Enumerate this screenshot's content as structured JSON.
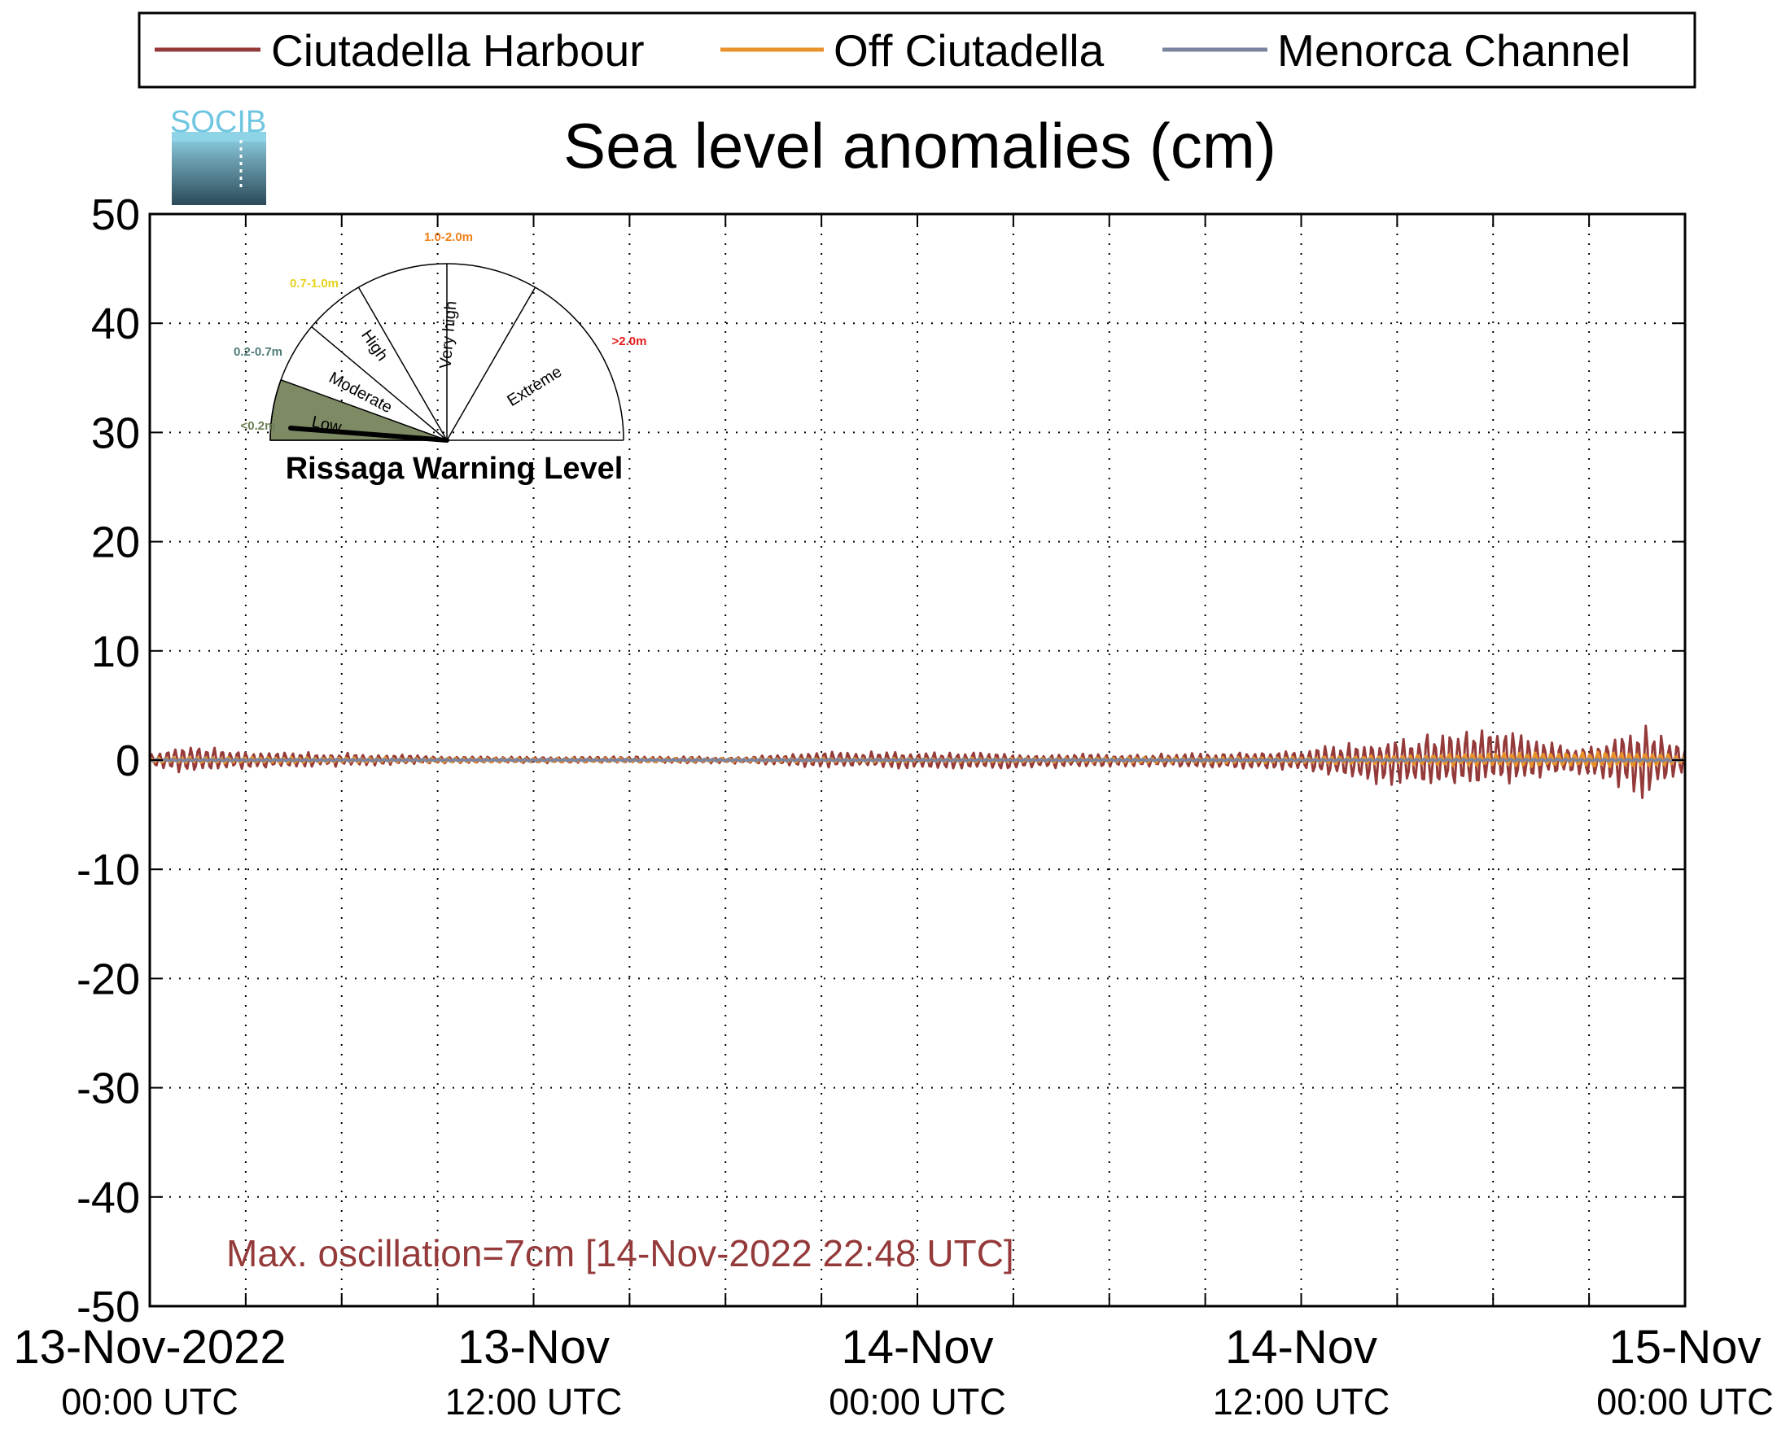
{
  "colors": {
    "harbour": "#953a3a",
    "off": "#e8922a",
    "channel": "#7a849e",
    "annotation": "#953a3a",
    "low_sector": "#7d8a64",
    "label_low": "#6b7f55",
    "label_moderate": "#4f7a78",
    "label_high": "#e6d21a",
    "label_veryhigh": "#f07f17",
    "label_extreme": "#e21a1a"
  },
  "logo": {
    "text": "SOCIB"
  },
  "chart_data": {
    "type": "line",
    "title": "Sea level anomalies (cm)",
    "xlabel": "",
    "ylabel": "",
    "ylim": [
      -50,
      50
    ],
    "yticks": [
      50,
      40,
      30,
      20,
      10,
      0,
      -10,
      -20,
      -30,
      -40,
      -50
    ],
    "xrange": [
      "2022-11-13T00:00Z",
      "2022-11-15T00:00Z"
    ],
    "xticks": [
      {
        "x": "2022-11-13T00:00Z",
        "line1": "13-Nov-2022",
        "line2": "00:00 UTC"
      },
      {
        "x": "2022-11-13T12:00Z",
        "line1": "13-Nov",
        "line2": "12:00 UTC"
      },
      {
        "x": "2022-11-14T00:00Z",
        "line1": "14-Nov",
        "line2": "00:00 UTC"
      },
      {
        "x": "2022-11-14T12:00Z",
        "line1": "14-Nov",
        "line2": "12:00 UTC"
      },
      {
        "x": "2022-11-15T00:00Z",
        "line1": "15-Nov",
        "line2": "00:00 UTC"
      }
    ],
    "grid": true,
    "legend_position": "top",
    "series": [
      {
        "name": "Ciutadella Harbour",
        "color_key": "harbour",
        "x": [
          "2022-11-13T00:00Z",
          "2022-11-13T01:00Z",
          "2022-11-13T03:00Z",
          "2022-11-13T06:00Z",
          "2022-11-13T09:00Z",
          "2022-11-13T12:00Z",
          "2022-11-13T15:00Z",
          "2022-11-13T18:00Z",
          "2022-11-13T21:00Z",
          "2022-11-14T00:00Z",
          "2022-11-14T03:00Z",
          "2022-11-14T06:00Z",
          "2022-11-14T09:00Z",
          "2022-11-14T12:00Z",
          "2022-11-14T14:00Z",
          "2022-11-14T16:00Z",
          "2022-11-14T17:00Z",
          "2022-11-14T18:00Z",
          "2022-11-14T20:00Z",
          "2022-11-14T21:00Z",
          "2022-11-14T22:48Z",
          "2022-11-15T00:00Z"
        ],
        "upper": [
          0.5,
          1.6,
          0.8,
          0.7,
          0.4,
          0.3,
          0.4,
          0.3,
          0.8,
          0.8,
          0.7,
          0.6,
          0.7,
          1.0,
          1.8,
          2.6,
          3.0,
          3.2,
          1.5,
          1.2,
          3.6,
          1.2
        ],
        "lower": [
          -0.5,
          -1.4,
          -0.8,
          -0.6,
          -0.3,
          -0.3,
          -0.3,
          -0.3,
          -0.7,
          -0.8,
          -0.9,
          -0.6,
          -0.8,
          -1.0,
          -2.2,
          -2.7,
          -2.8,
          -2.6,
          -1.4,
          -1.3,
          -3.8,
          -1.0
        ]
      },
      {
        "name": "Off Ciutadella",
        "color_key": "off",
        "x": [
          "2022-11-13T00:00Z",
          "2022-11-13T12:00Z",
          "2022-11-14T00:00Z",
          "2022-11-14T12:00Z",
          "2022-11-14T18:00Z",
          "2022-11-14T22:48Z",
          "2022-11-15T00:00Z"
        ],
        "upper": [
          0.3,
          0.2,
          0.2,
          0.3,
          0.7,
          0.8,
          0.3
        ],
        "lower": [
          -0.3,
          -0.2,
          -0.2,
          -0.3,
          -0.6,
          -0.7,
          -0.3
        ]
      },
      {
        "name": "Menorca Channel",
        "color_key": "channel",
        "x": [
          "2022-11-13T00:00Z",
          "2022-11-14T00:00Z",
          "2022-11-15T00:00Z"
        ],
        "upper": [
          0.1,
          0.1,
          0.1
        ],
        "lower": [
          -0.1,
          -0.1,
          -0.1
        ]
      }
    ],
    "annotation": "Max. oscillation=7cm [14-Nov-2022 22:48 UTC]"
  },
  "gauge": {
    "title": "Rissaga Warning Level",
    "current_level": "Low",
    "sectors": [
      {
        "name": "Low",
        "range": "<0.2m",
        "color_key": "label_low"
      },
      {
        "name": "Moderate",
        "range": "0.2-0.7m",
        "color_key": "label_moderate"
      },
      {
        "name": "High",
        "range": "0.7-1.0m",
        "color_key": "label_high"
      },
      {
        "name": "Very high",
        "range": "1.0-2.0m",
        "color_key": "label_veryhigh"
      },
      {
        "name": "Extreme",
        "range": ">2.0m",
        "color_key": "label_extreme"
      }
    ]
  }
}
